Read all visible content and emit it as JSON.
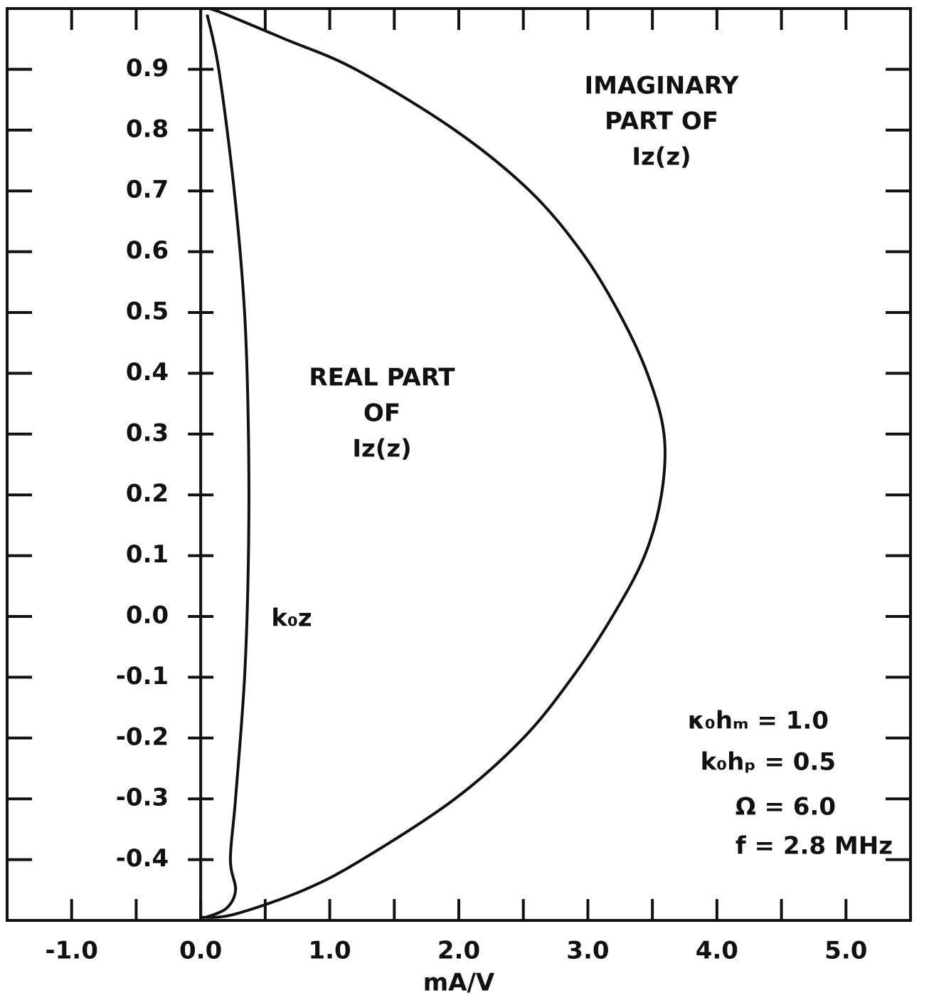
{
  "chart_data": {
    "type": "line",
    "xlabel": "mA/V",
    "xlim": [
      -1.5,
      5.5
    ],
    "xticks": [
      {
        "value": -1,
        "label": "-1.0"
      },
      {
        "value": 0,
        "label": "0.0"
      },
      {
        "value": 1,
        "label": "1.0"
      },
      {
        "value": 2,
        "label": "2.0"
      },
      {
        "value": 3,
        "label": "3.0"
      },
      {
        "value": 4,
        "label": "4.0"
      },
      {
        "value": 5,
        "label": "5.0"
      }
    ],
    "xminorticks": [
      -0.5,
      0.5,
      1.5,
      2.5,
      3.5,
      4.5
    ],
    "ylim": [
      -0.5,
      1.0
    ],
    "yticks": [
      {
        "value": -0.4,
        "label": "-0.4"
      },
      {
        "value": -0.3,
        "label": "-0.3"
      },
      {
        "value": -0.2,
        "label": "-0.2"
      },
      {
        "value": -0.1,
        "label": "-0.1"
      },
      {
        "value": 0,
        "label": "0.0"
      },
      {
        "value": 0.1,
        "label": "0.1"
      },
      {
        "value": 0.2,
        "label": "0.2"
      },
      {
        "value": 0.3,
        "label": "0.3"
      },
      {
        "value": 0.4,
        "label": "0.4"
      },
      {
        "value": 0.5,
        "label": "0.5"
      },
      {
        "value": 0.6,
        "label": "0.6"
      },
      {
        "value": 0.7,
        "label": "0.7"
      },
      {
        "value": 0.8,
        "label": "0.8"
      },
      {
        "value": 0.9,
        "label": "0.9"
      }
    ],
    "ylabel_annotation": "k₀z",
    "series": [
      {
        "label_lines": [
          "IMAGINARY",
          "PART  OF",
          "Iz(z)"
        ],
        "color": "#111111",
        "x": [
          0.07,
          0.2,
          0.65,
          1.2,
          1.97,
          2.55,
          2.95,
          3.24,
          3.46,
          3.59,
          3.57,
          3.44,
          3.19,
          2.88,
          2.5,
          1.97,
          1.25,
          0.8,
          0.26,
          0.01
        ],
        "y": [
          1.0,
          0.99,
          0.95,
          0.9,
          0.8,
          0.7,
          0.6,
          0.5,
          0.4,
          0.3,
          0.2,
          0.1,
          0.0,
          -0.1,
          -0.2,
          -0.3,
          -0.4,
          -0.45,
          -0.49,
          -0.495
        ]
      },
      {
        "label_lines": [
          "REAL  PART",
          "OF",
          "Iz(z)"
        ],
        "color": "#111111",
        "x": [
          0.05,
          0.14,
          0.26,
          0.34,
          0.37,
          0.37,
          0.34,
          0.27,
          0.23,
          0.27,
          0.2,
          0.04
        ],
        "y": [
          0.99,
          0.9,
          0.7,
          0.5,
          0.3,
          0.1,
          -0.1,
          -0.3,
          -0.4,
          -0.45,
          -0.48,
          -0.495
        ]
      }
    ],
    "parameters": [
      "κ₀hₘ = 1.0",
      "k₀hₚ = 0.5",
      "Ω = 6.0",
      "f = 2.8 MHz"
    ]
  }
}
